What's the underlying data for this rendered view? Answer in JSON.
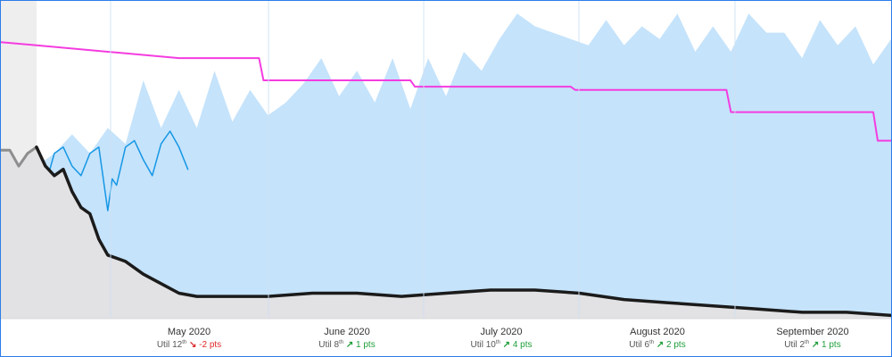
{
  "chart_data": {
    "type": "area",
    "x_axis": {
      "months": [
        {
          "label": "May 2020",
          "util_rank": "12",
          "rank_suffix": "th",
          "change_arrow": "↘",
          "change": "-2 pts",
          "direction": "down"
        },
        {
          "label": "June 2020",
          "util_rank": "8",
          "rank_suffix": "th",
          "change_arrow": "↗",
          "change": "1 pts",
          "direction": "up"
        },
        {
          "label": "July 2020",
          "util_rank": "10",
          "rank_suffix": "th",
          "change_arrow": "↗",
          "change": "4 pts",
          "direction": "up"
        },
        {
          "label": "August 2020",
          "util_rank": "6",
          "rank_suffix": "th",
          "change_arrow": "↗",
          "change": "2 pts",
          "direction": "up"
        },
        {
          "label": "September 2020",
          "util_rank": "2",
          "rank_suffix": "th",
          "change_arrow": "↗",
          "change": "1 pts",
          "direction": "up"
        }
      ],
      "sub_prefix": "Util"
    },
    "ylim": [
      0,
      100
    ],
    "series": [
      {
        "kind": "area",
        "color": "#c5e3fb",
        "x": [
          0.04,
          0.06,
          0.08,
          0.1,
          0.12,
          0.14,
          0.16,
          0.18,
          0.2,
          0.22,
          0.24,
          0.26,
          0.28,
          0.3,
          0.32,
          0.34,
          0.36,
          0.38,
          0.4,
          0.42,
          0.44,
          0.46,
          0.48,
          0.5,
          0.52,
          0.54,
          0.56,
          0.58,
          0.6,
          0.62,
          0.64,
          0.66,
          0.68,
          0.7,
          0.72,
          0.74,
          0.76,
          0.78,
          0.8,
          0.82,
          0.84,
          0.86,
          0.88,
          0.9,
          0.92,
          0.94,
          0.96,
          0.98,
          1.0
        ],
        "values": [
          48,
          52,
          58,
          52,
          60,
          55,
          75,
          60,
          72,
          60,
          78,
          62,
          72,
          64,
          68,
          74,
          82,
          70,
          78,
          68,
          82,
          66,
          82,
          70,
          84,
          78,
          88,
          96,
          92,
          90,
          88,
          86,
          94,
          86,
          92,
          88,
          96,
          84,
          92,
          84,
          96,
          90,
          90,
          82,
          94,
          86,
          92,
          80,
          88
        ]
      },
      {
        "kind": "line",
        "color": "#1597e5",
        "x": [
          0.04,
          0.05,
          0.06,
          0.07,
          0.08,
          0.09,
          0.1,
          0.11,
          0.12,
          0.125,
          0.13,
          0.14,
          0.15,
          0.16,
          0.17,
          0.18,
          0.19,
          0.2,
          0.21
        ],
        "values": [
          48,
          42,
          52,
          54,
          48,
          45,
          52,
          54,
          34,
          44,
          42,
          54,
          56,
          50,
          45,
          55,
          59,
          54,
          47
        ]
      },
      {
        "kind": "step",
        "color": "#f43ce0",
        "x": [
          0.0,
          0.04,
          0.12,
          0.2,
          0.29,
          0.295,
          0.46,
          0.465,
          0.64,
          0.645,
          0.815,
          0.82,
          0.98,
          0.985,
          1.0
        ],
        "values": [
          87,
          86,
          84,
          82,
          82,
          75,
          75,
          73,
          73,
          72,
          72,
          65,
          65,
          56,
          56
        ]
      },
      {
        "kind": "area",
        "color": "#e2e1e3",
        "x": [
          0.0,
          0.01,
          0.02,
          0.03,
          0.04,
          0.05,
          0.06,
          0.07,
          0.08,
          0.09,
          0.1,
          0.11,
          0.12,
          0.14,
          0.16,
          0.18,
          0.2,
          0.22,
          0.24,
          0.26,
          0.3,
          0.35,
          0.4,
          0.45,
          0.5,
          0.55,
          0.6,
          0.65,
          0.7,
          0.75,
          0.8,
          0.85,
          0.9,
          0.95,
          1.0
        ],
        "values": [
          53,
          53,
          48,
          52,
          54,
          48,
          45,
          47,
          40,
          35,
          33,
          25,
          20,
          18,
          14,
          11,
          8,
          7,
          7,
          7,
          7,
          8,
          8,
          7,
          8,
          9,
          9,
          8,
          6,
          5,
          4,
          3,
          2,
          2,
          1
        ]
      },
      {
        "kind": "line",
        "color": "#8e8e8e",
        "x": [
          0.0,
          0.01,
          0.02,
          0.03,
          0.04
        ],
        "values": [
          53,
          53,
          48,
          52,
          54
        ]
      },
      {
        "kind": "line",
        "color": "#1b1b1b",
        "x": [
          0.04,
          0.05,
          0.06,
          0.07,
          0.08,
          0.09,
          0.1,
          0.11,
          0.12,
          0.14,
          0.16,
          0.18,
          0.2,
          0.22,
          0.24,
          0.26,
          0.3,
          0.35,
          0.4,
          0.45,
          0.5,
          0.55,
          0.6,
          0.65,
          0.7,
          0.75,
          0.8,
          0.85,
          0.9,
          0.95,
          1.0
        ],
        "values": [
          54,
          48,
          45,
          47,
          40,
          35,
          33,
          25,
          20,
          18,
          14,
          11,
          8,
          7,
          7,
          7,
          7,
          8,
          8,
          7,
          8,
          9,
          9,
          8,
          6,
          5,
          4,
          3,
          2,
          2,
          1
        ]
      }
    ],
    "vertical_gridlines_at_months": true,
    "grid": true,
    "legend": "none",
    "colors": {
      "gridline": "#cfe2f3",
      "shaded_left": "#efeeef",
      "frame": "#2b7de9"
    }
  }
}
